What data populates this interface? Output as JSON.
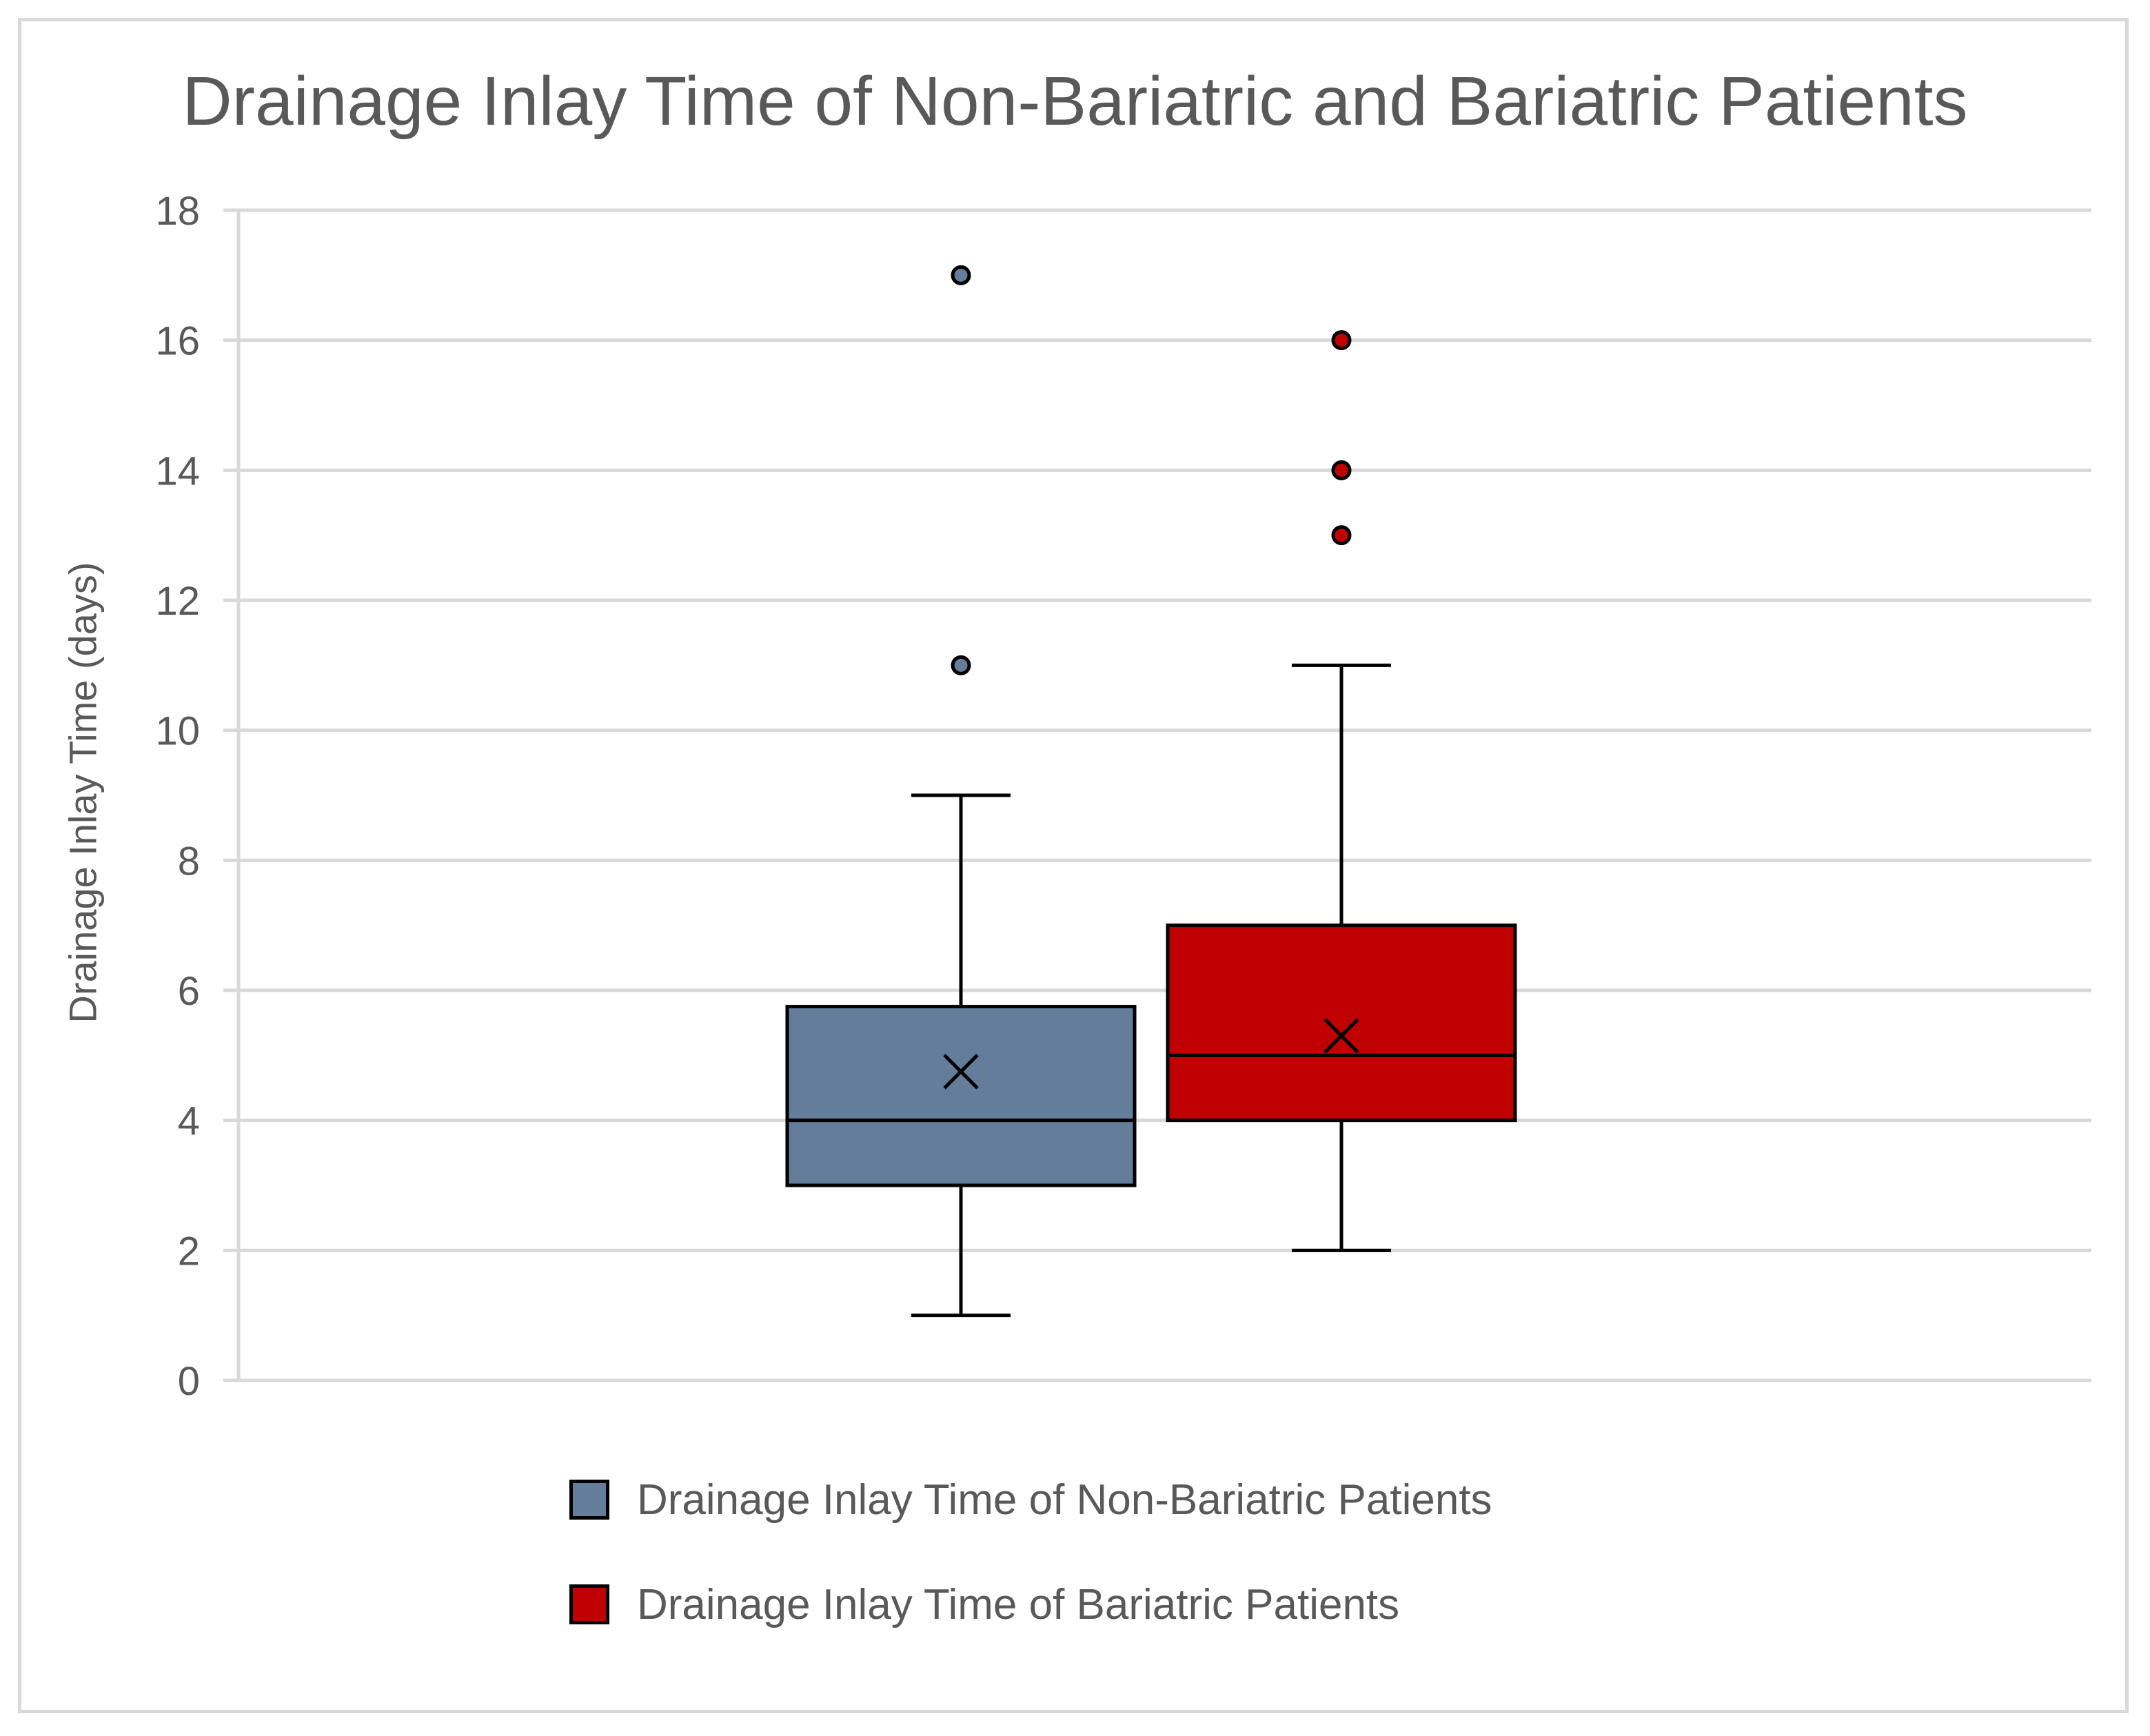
{
  "chart_data": {
    "type": "box",
    "title": "Drainage Inlay Time of Non-Bariatric and Bariatric Patients",
    "ylabel": "Drainage Inlay Time (days)",
    "xlabel": "",
    "ylim": [
      0,
      18
    ],
    "yticks": [
      "0",
      "2",
      "4",
      "6",
      "8",
      "10",
      "12",
      "14",
      "16",
      "18"
    ],
    "grid": true,
    "legend_position": "bottom",
    "series": [
      {
        "name": "Drainage Inlay Time of Non-Bariatric Patients",
        "color": "#647d9b",
        "min": 1,
        "q1": 3,
        "median": 4,
        "q3": 5.75,
        "max": 9,
        "mean": 4.75,
        "outliers": [
          11,
          17
        ]
      },
      {
        "name": "Drainage Inlay Time of Bariatric Patients",
        "color": "#c00000",
        "min": 2,
        "q1": 4,
        "median": 5,
        "q3": 7,
        "max": 11,
        "mean": 5.3,
        "outliers": [
          13,
          14,
          16
        ]
      }
    ]
  }
}
